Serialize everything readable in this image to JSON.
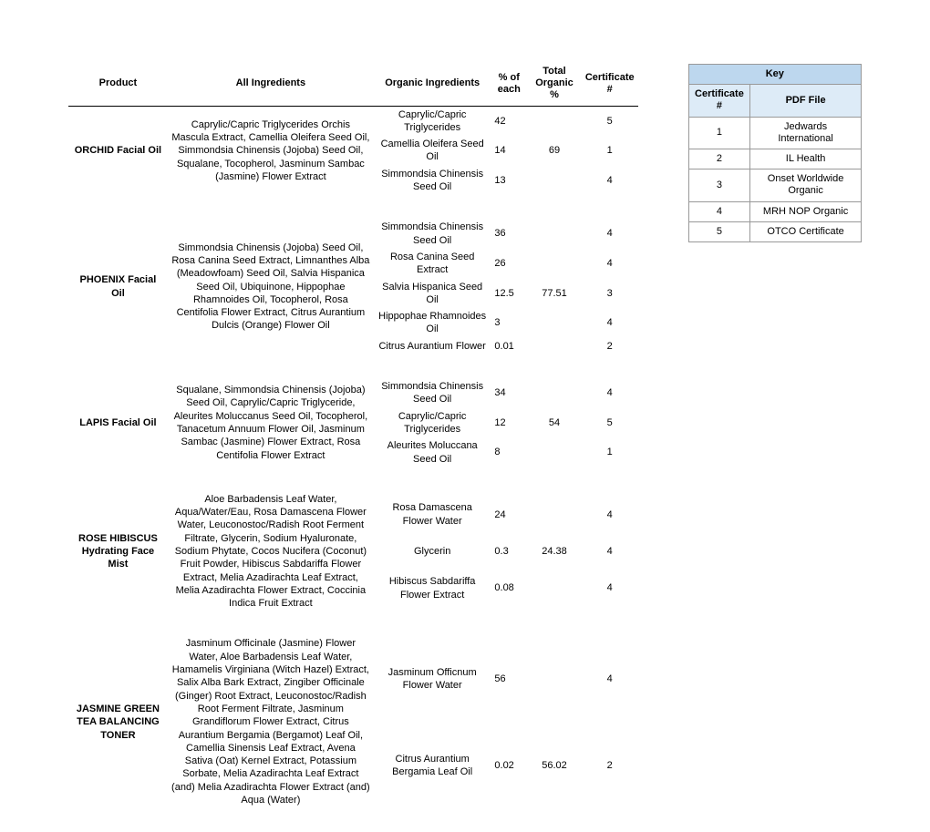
{
  "headers": {
    "product": "Product",
    "allIngredients": "All Ingredients",
    "organicIngredients": "Organic Ingredients",
    "pctEach": "% of each",
    "totalOrganic": "Total Organic %",
    "certNum": "Certificate #"
  },
  "products": [
    {
      "name": "ORCHID Facial Oil",
      "allIngredients": "Caprylic/Capric Triglycerides Orchis Mascula Extract, Camellia Oleifera Seed Oil, Simmondsia Chinensis (Jojoba) Seed Oil, Squalane, Tocopherol, Jasminum Sambac (Jasmine) Flower Extract",
      "totalOrganic": "69",
      "organics": [
        {
          "name": "Caprylic/Capric Triglycerides",
          "pct": "42",
          "cert": "5"
        },
        {
          "name": "Camellia Oleifera Seed Oil",
          "pct": "14",
          "cert": "1"
        },
        {
          "name": "Simmondsia Chinensis Seed Oil",
          "pct": "13",
          "cert": "4"
        }
      ]
    },
    {
      "name": "PHOENIX Facial Oil",
      "allIngredients": "Simmondsia Chinensis (Jojoba) Seed Oil, Rosa Canina Seed Extract, Limnanthes Alba (Meadowfoam) Seed Oil, Salvia Hispanica Seed Oil, Ubiquinone, Hippophae Rhamnoides Oil, Tocopherol, Rosa Centifolia Flower Extract, Citrus Aurantium Dulcis (Orange) Flower Oil",
      "totalOrganic": "77.51",
      "organics": [
        {
          "name": "Simmondsia Chinensis Seed Oil",
          "pct": "36",
          "cert": "4"
        },
        {
          "name": "Rosa Canina Seed Extract",
          "pct": "26",
          "cert": "4"
        },
        {
          "name": "Salvia Hispanica Seed Oil",
          "pct": "12.5",
          "cert": "3"
        },
        {
          "name": "Hippophae Rhamnoides Oil",
          "pct": "3",
          "cert": "4"
        },
        {
          "name": "Citrus Aurantium Flower",
          "pct": "0.01",
          "cert": "2"
        }
      ]
    },
    {
      "name": "LAPIS Facial Oil",
      "allIngredients": "Squalane, Simmondsia Chinensis (Jojoba) Seed Oil, Caprylic/Capric Triglyceride, Aleurites Moluccanus Seed Oil, Tocopherol, Tanacetum Annuum Flower Oil, Jasminum Sambac (Jasmine) Flower Extract, Rosa Centifolia Flower Extract",
      "totalOrganic": "54",
      "organics": [
        {
          "name": "Simmondsia Chinensis Seed Oil",
          "pct": "34",
          "cert": "4"
        },
        {
          "name": "Caprylic/Capric Triglycerides",
          "pct": "12",
          "cert": "5"
        },
        {
          "name": "Aleurites Moluccana Seed Oil",
          "pct": "8",
          "cert": "1"
        }
      ]
    },
    {
      "name": "ROSE HIBISCUS Hydrating Face Mist",
      "allIngredients": "Aloe Barbadensis Leaf Water, Aqua/Water/Eau, Rosa Damascena Flower Water, Leuconostoc/Radish Root Ferment Filtrate, Glycerin, Sodium Hyaluronate, Sodium Phytate, Cocos Nucifera (Coconut) Fruit Powder, Hibiscus Sabdariffa Flower Extract, Melia Azadirachta Leaf Extract, Melia Azadirachta Flower Extract, Coccinia Indica Fruit Extract",
      "totalOrganic": "24.38",
      "organics": [
        {
          "name": "Rosa Damascena Flower Water",
          "pct": "24",
          "cert": "4"
        },
        {
          "name": "Glycerin",
          "pct": "0.3",
          "cert": "4"
        },
        {
          "name": "Hibiscus Sabdariffa Flower Extract",
          "pct": "0.08",
          "cert": "4"
        }
      ]
    },
    {
      "name": "JASMINE GREEN TEA BALANCING TONER",
      "allIngredients": "Jasminum Officinale (Jasmine) Flower Water, Aloe Barbadensis Leaf Water, Hamamelis Virginiana (Witch Hazel) Extract, Salix Alba Bark Extract, Zingiber Officinale (Ginger) Root Extract, Leuconostoc/Radish Root Ferment Filtrate, Jasminum Grandiflorum Flower Extract, Citrus Aurantium Bergamia (Bergamot) Leaf Oil, Camellia Sinensis Leaf Extract, Avena Sativa (Oat) Kernel Extract, Potassium Sorbate, Melia Azadirachta Leaf Extract (and) Melia Azadirachta Flower Extract (and) Aqua (Water)",
      "totalOrganic": "56.02",
      "organics": [
        {
          "name": "Jasminum Officnum Flower Water",
          "pct": "56",
          "cert": "4"
        },
        {
          "name": "Citrus Aurantium Bergamia Leaf Oil",
          "pct": "0.02",
          "cert": "2"
        }
      ]
    }
  ],
  "key": {
    "header": "Key",
    "subCert": "Certificate #",
    "subFile": "PDF File",
    "rows": [
      {
        "num": "1",
        "file": "Jedwards International"
      },
      {
        "num": "2",
        "file": "IL Health"
      },
      {
        "num": "3",
        "file": "Onset Worldwide Organic"
      },
      {
        "num": "4",
        "file": "MRH NOP Organic"
      },
      {
        "num": "5",
        "file": "OTCO Certificate"
      }
    ]
  }
}
